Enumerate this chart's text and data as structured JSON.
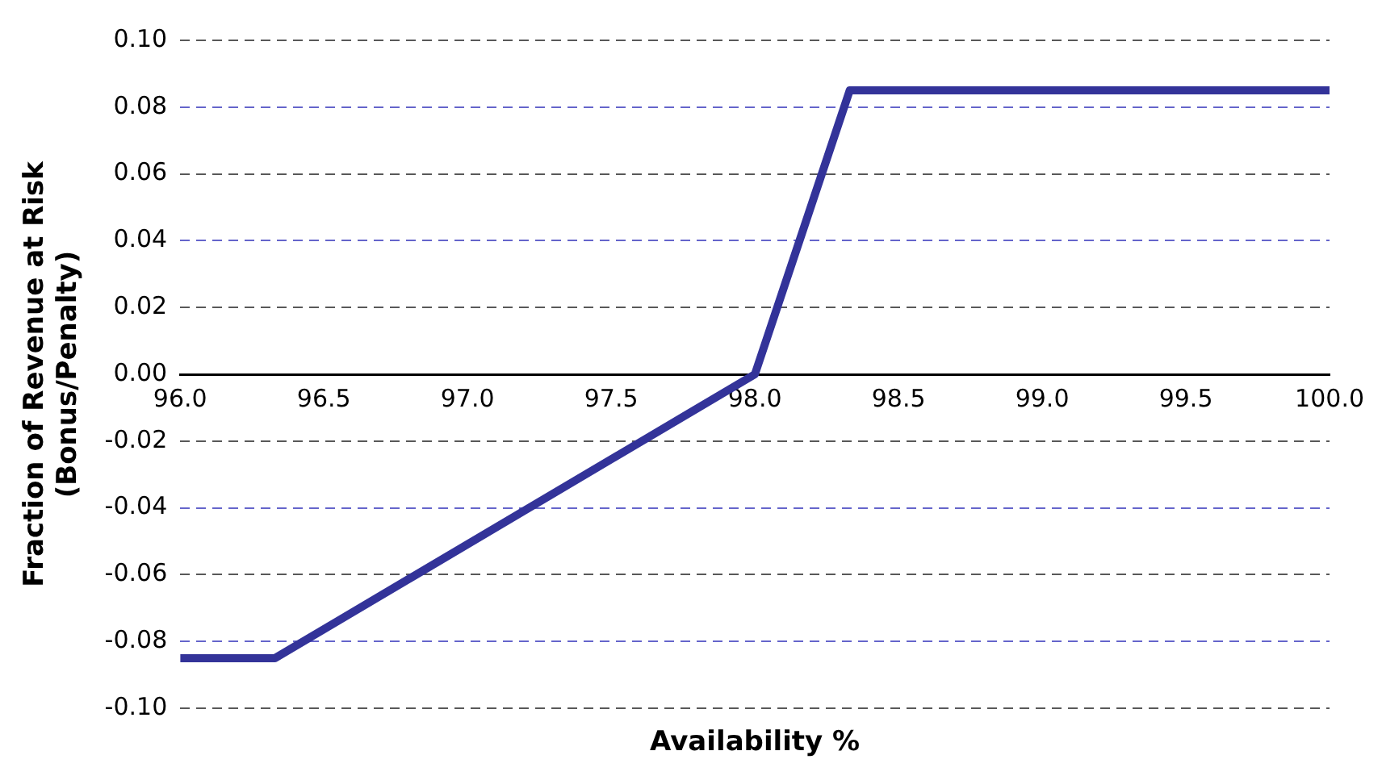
{
  "chart_data": {
    "type": "line",
    "xlabel": "Availability %",
    "ylabel": "Fraction of Revenue at Risk\n(Bonus/Penalty)",
    "x": [
      96.0,
      96.33,
      98.0,
      98.33,
      100.0
    ],
    "series": [
      {
        "color": "#333399",
        "values": [
          -0.085,
          -0.085,
          0,
          0.085,
          0.085
        ]
      }
    ],
    "xlim": [
      96,
      100
    ],
    "xticks": [
      {
        "value": 96,
        "label": "96.0"
      },
      {
        "value": 96.5,
        "label": "96.5"
      },
      {
        "value": 97,
        "label": "97.0"
      },
      {
        "value": 97.5,
        "label": "97.5"
      },
      {
        "value": 98,
        "label": "98.0"
      },
      {
        "value": 98.5,
        "label": "98.5"
      },
      {
        "value": 99,
        "label": "99.0"
      },
      {
        "value": 99.5,
        "label": "99.5"
      },
      {
        "value": 100,
        "label": "100.0"
      }
    ],
    "ylim": [
      -0.1,
      0.1
    ],
    "yticks": [
      {
        "value": -0.1,
        "label": "-0.10"
      },
      {
        "value": -0.08,
        "label": "-0.08"
      },
      {
        "value": -0.06,
        "label": "-0.06"
      },
      {
        "value": -0.04,
        "label": "-0.04"
      },
      {
        "value": -0.02,
        "label": "-0.02"
      },
      {
        "value": 0,
        "label": "0.00"
      },
      {
        "value": 0.02,
        "label": "0.02"
      },
      {
        "value": 0.04,
        "label": "0.04"
      },
      {
        "value": 0.06,
        "label": "0.06"
      },
      {
        "value": 0.08,
        "label": "0.08"
      },
      {
        "value": 0.1,
        "label": "0.10"
      }
    ],
    "grid": "y",
    "legend": false,
    "marker": "none",
    "line_style": "solid"
  }
}
